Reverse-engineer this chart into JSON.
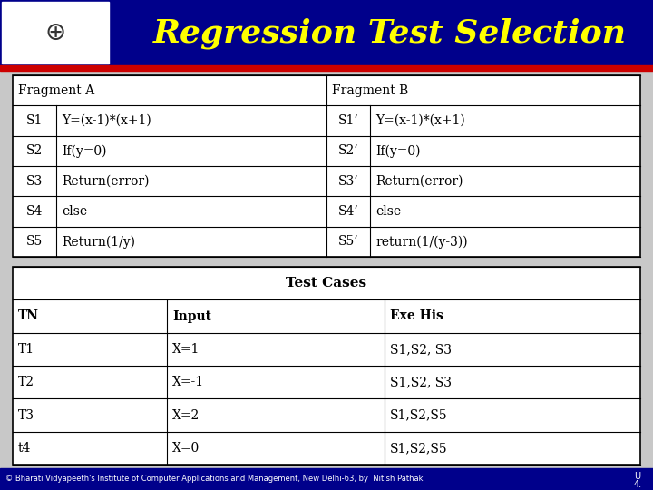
{
  "title": "Regression Test Selection",
  "title_color": "#FFFF00",
  "header_bg": "#00008B",
  "red_stripe_color": "#CC0000",
  "slide_bg": "#C8C8C8",
  "fragment_table": {
    "rows": [
      [
        "S1",
        "Y=(x-1)*(x+1)",
        "S1’",
        "Y=(x-1)*(x+1)"
      ],
      [
        "S2",
        "If(y=0)",
        "S2’",
        "If(y=0)"
      ],
      [
        "S3",
        "Return(error)",
        "S3’",
        "Return(error)"
      ],
      [
        "S4",
        "else",
        "S4’",
        "else"
      ],
      [
        "S5",
        "Return(1/y)",
        "S5’",
        "return(1/(y-3))"
      ]
    ]
  },
  "test_table": {
    "title": "Test Cases",
    "headers": [
      "TN",
      "Input",
      "Exe His"
    ],
    "rows": [
      [
        "T1",
        "X=1",
        "S1,S2, S3"
      ],
      [
        "T2",
        "X=-1",
        "S1,S2, S3"
      ],
      [
        "T3",
        "X=2",
        "S1,S2,S5"
      ],
      [
        "t4",
        "X=0",
        "S1,S2,S5"
      ]
    ]
  },
  "footer": "© Bharati Vidyapeeth's Institute of Computer Applications and Management, New Delhi-63, by  Nitish Pathak",
  "footer_right": "U\n4."
}
